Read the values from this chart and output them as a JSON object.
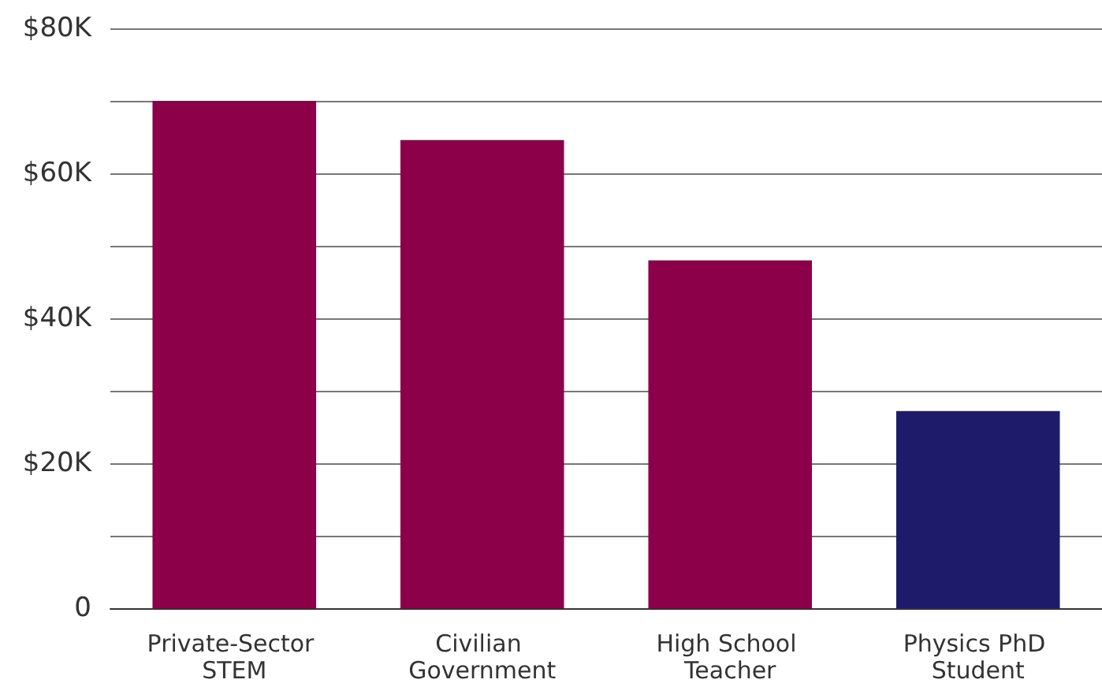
{
  "chart_data": {
    "type": "bar",
    "categories": [
      "Private-Sector STEM",
      "Civilian Government",
      "High School Teacher",
      "Physics PhD Student"
    ],
    "values": [
      70000,
      64600,
      48000,
      27200
    ],
    "colors": [
      "#8b0049",
      "#8b0049",
      "#8b0049",
      "#1f1b6b"
    ],
    "ylim": [
      0,
      80000
    ],
    "yticks": [
      {
        "value": 0,
        "label": "0"
      },
      {
        "value": 10000,
        "label": null
      },
      {
        "value": 20000,
        "label": "$20K"
      },
      {
        "value": 30000,
        "label": null
      },
      {
        "value": 40000,
        "label": "$40K"
      },
      {
        "value": 50000,
        "label": null
      },
      {
        "value": 60000,
        "label": "$60K"
      },
      {
        "value": 70000,
        "label": null
      },
      {
        "value": 80000,
        "label": "$80K"
      }
    ],
    "grid": true
  }
}
